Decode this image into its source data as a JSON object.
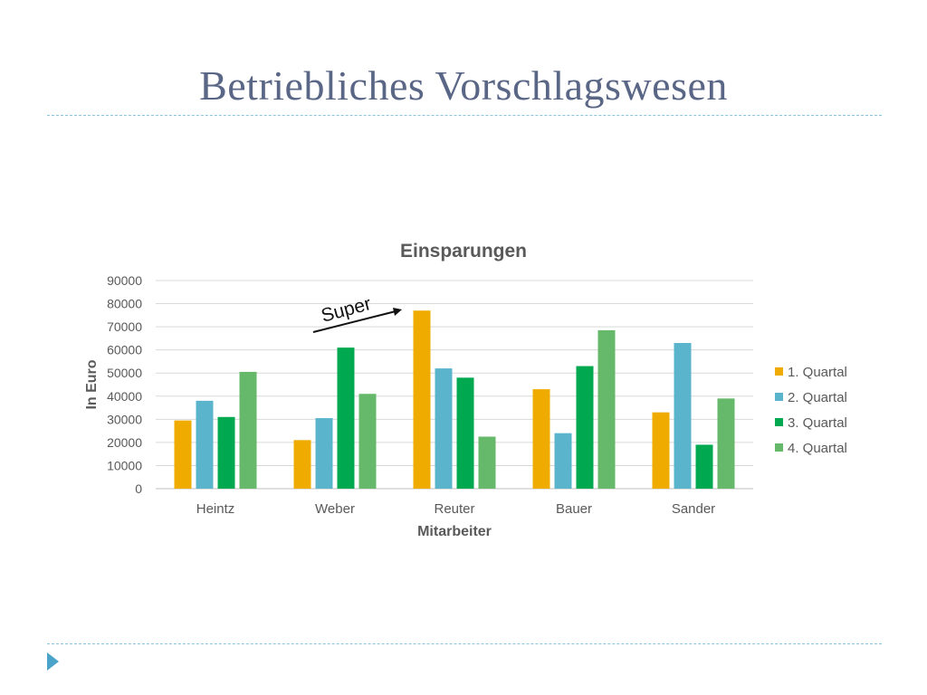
{
  "slide": {
    "title": "Betriebliches Vorschlagswesen"
  },
  "annotation": {
    "text": "Super"
  },
  "colors": {
    "title": "#5a6685",
    "divider": "#8cc4dc",
    "nav_arrow": "#4aa3c8",
    "gridline": "#d9d9d9",
    "axis_text": "#595959"
  },
  "chart_data": {
    "type": "bar",
    "title": "Einsparungen",
    "xlabel": "Mitarbeiter",
    "ylabel": "In Euro",
    "ylim": [
      0,
      90000
    ],
    "yticks": [
      0,
      10000,
      20000,
      30000,
      40000,
      50000,
      60000,
      70000,
      80000,
      90000
    ],
    "grid": true,
    "legend_position": "right",
    "categories": [
      "Heintz",
      "Weber",
      "Reuter",
      "Bauer",
      "Sander"
    ],
    "series": [
      {
        "name": "1. Quartal",
        "color": "#f0ab00",
        "values": [
          29500,
          21000,
          77000,
          43000,
          33000
        ]
      },
      {
        "name": "2. Quartal",
        "color": "#5ab4cc",
        "values": [
          38000,
          30500,
          52000,
          24000,
          63000
        ]
      },
      {
        "name": "3. Quartal",
        "color": "#00a850",
        "values": [
          31000,
          61000,
          48000,
          53000,
          19000
        ]
      },
      {
        "name": "4. Quartal",
        "color": "#66b86a",
        "values": [
          50500,
          41000,
          22500,
          68500,
          39000
        ]
      }
    ]
  }
}
